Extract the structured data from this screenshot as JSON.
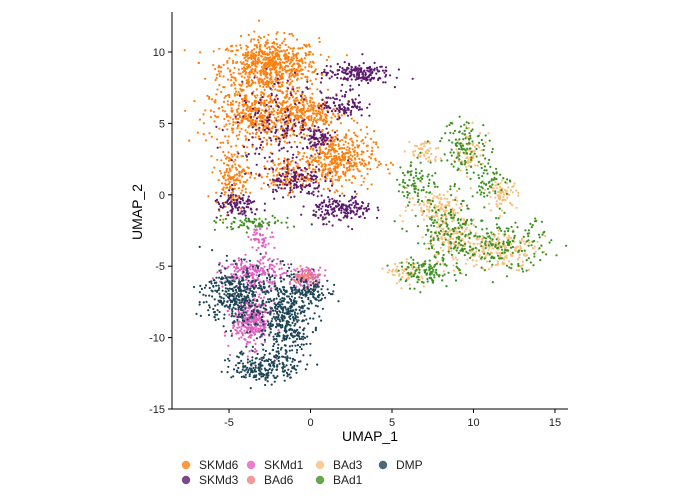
{
  "chart_data": {
    "type": "scatter",
    "title": "",
    "xlabel": "UMAP_1",
    "ylabel": "UMAP_2",
    "xlim": [
      -8.5,
      15.8
    ],
    "ylim": [
      -15,
      12.8
    ],
    "xticks": [
      -5,
      0,
      5,
      10,
      15
    ],
    "yticks": [
      -15,
      -10,
      -5,
      0,
      5,
      10
    ],
    "grid": false,
    "legend": {
      "position": "bottom"
    },
    "series": [
      {
        "name": "SKMd6",
        "color": "#ff7f0e",
        "clusters": [
          {
            "cx": -2.5,
            "cy": 9.0,
            "sx": 2.0,
            "sy": 1.3,
            "n": 700
          },
          {
            "cx": -3.2,
            "cy": 5.5,
            "sx": 2.0,
            "sy": 1.3,
            "n": 500
          },
          {
            "cx": 1.5,
            "cy": 2.5,
            "sx": 1.6,
            "sy": 1.3,
            "n": 450
          },
          {
            "cx": 0.0,
            "cy": 5.8,
            "sx": 1.3,
            "sy": 1.0,
            "n": 220
          },
          {
            "cx": -4.8,
            "cy": 1.2,
            "sx": 0.7,
            "sy": 1.3,
            "n": 160
          },
          {
            "cx": -1.5,
            "cy": 1.3,
            "sx": 1.0,
            "sy": 0.7,
            "n": 120
          }
        ]
      },
      {
        "name": "SKMd3",
        "color": "#5b1a6e",
        "clusters": [
          {
            "cx": 2.8,
            "cy": 8.5,
            "sx": 1.4,
            "sy": 0.5,
            "n": 180
          },
          {
            "cx": 2.0,
            "cy": 6.3,
            "sx": 0.9,
            "sy": 0.6,
            "n": 100
          },
          {
            "cx": 0.5,
            "cy": 4.0,
            "sx": 0.6,
            "sy": 0.5,
            "n": 70
          },
          {
            "cx": -1.0,
            "cy": 1.0,
            "sx": 1.2,
            "sy": 0.8,
            "n": 140
          },
          {
            "cx": 2.0,
            "cy": -1.0,
            "sx": 1.2,
            "sy": 0.6,
            "n": 180
          },
          {
            "cx": -4.5,
            "cy": -0.8,
            "sx": 1.0,
            "sy": 0.6,
            "n": 110
          },
          {
            "cx": -2.0,
            "cy": 5.0,
            "sx": 1.8,
            "sy": 2.0,
            "n": 180
          }
        ]
      },
      {
        "name": "SKMd1",
        "color": "#e15fc2",
        "clusters": [
          {
            "cx": -3.6,
            "cy": -8.8,
            "sx": 0.8,
            "sy": 1.2,
            "n": 350
          },
          {
            "cx": -3.5,
            "cy": -5.5,
            "sx": 1.3,
            "sy": 0.7,
            "n": 220
          },
          {
            "cx": -0.2,
            "cy": -5.8,
            "sx": 0.6,
            "sy": 0.5,
            "n": 90
          },
          {
            "cx": -3.0,
            "cy": -3.0,
            "sx": 0.5,
            "sy": 0.6,
            "n": 50
          }
        ]
      },
      {
        "name": "BAd6",
        "color": "#f08080",
        "clusters": [
          {
            "cx": -0.3,
            "cy": -5.7,
            "sx": 0.5,
            "sy": 0.4,
            "n": 60
          }
        ]
      },
      {
        "name": "BAd3",
        "color": "#f9be78",
        "clusters": [
          {
            "cx": 11.5,
            "cy": -3.8,
            "sx": 1.6,
            "sy": 0.9,
            "n": 200
          },
          {
            "cx": 8.5,
            "cy": -3.2,
            "sx": 1.0,
            "sy": 1.2,
            "n": 150
          },
          {
            "cx": 11.8,
            "cy": 0.0,
            "sx": 0.6,
            "sy": 0.6,
            "n": 70
          },
          {
            "cx": 7.8,
            "cy": -0.8,
            "sx": 1.2,
            "sy": 0.8,
            "n": 120
          },
          {
            "cx": 9.8,
            "cy": 3.0,
            "sx": 0.6,
            "sy": 1.0,
            "n": 80
          },
          {
            "cx": 7.0,
            "cy": 3.0,
            "sx": 0.6,
            "sy": 0.6,
            "n": 50
          },
          {
            "cx": 6.0,
            "cy": -5.5,
            "sx": 0.7,
            "sy": 0.5,
            "n": 60
          }
        ]
      },
      {
        "name": "BAd1",
        "color": "#3d9120",
        "clusters": [
          {
            "cx": 12.0,
            "cy": -3.5,
            "sx": 1.8,
            "sy": 1.2,
            "n": 160
          },
          {
            "cx": 8.5,
            "cy": -3.0,
            "sx": 1.5,
            "sy": 2.0,
            "n": 200
          },
          {
            "cx": 9.5,
            "cy": 3.5,
            "sx": 1.0,
            "sy": 1.2,
            "n": 110
          },
          {
            "cx": 6.5,
            "cy": 1.0,
            "sx": 0.8,
            "sy": 1.0,
            "n": 80
          },
          {
            "cx": 7.0,
            "cy": -5.5,
            "sx": 1.0,
            "sy": 0.6,
            "n": 90
          },
          {
            "cx": 11.0,
            "cy": 1.0,
            "sx": 0.8,
            "sy": 0.8,
            "n": 60
          },
          {
            "cx": -4.0,
            "cy": -2.0,
            "sx": 1.8,
            "sy": 0.3,
            "n": 70
          }
        ]
      },
      {
        "name": "DMP",
        "color": "#1d4556",
        "clusters": [
          {
            "cx": -4.5,
            "cy": -7.0,
            "sx": 1.3,
            "sy": 1.4,
            "n": 400
          },
          {
            "cx": -1.5,
            "cy": -8.5,
            "sx": 1.1,
            "sy": 2.0,
            "n": 450
          },
          {
            "cx": -2.8,
            "cy": -12.0,
            "sx": 1.3,
            "sy": 0.8,
            "n": 220
          },
          {
            "cx": 0.3,
            "cy": -6.8,
            "sx": 0.8,
            "sy": 0.5,
            "n": 80
          }
        ]
      }
    ]
  }
}
